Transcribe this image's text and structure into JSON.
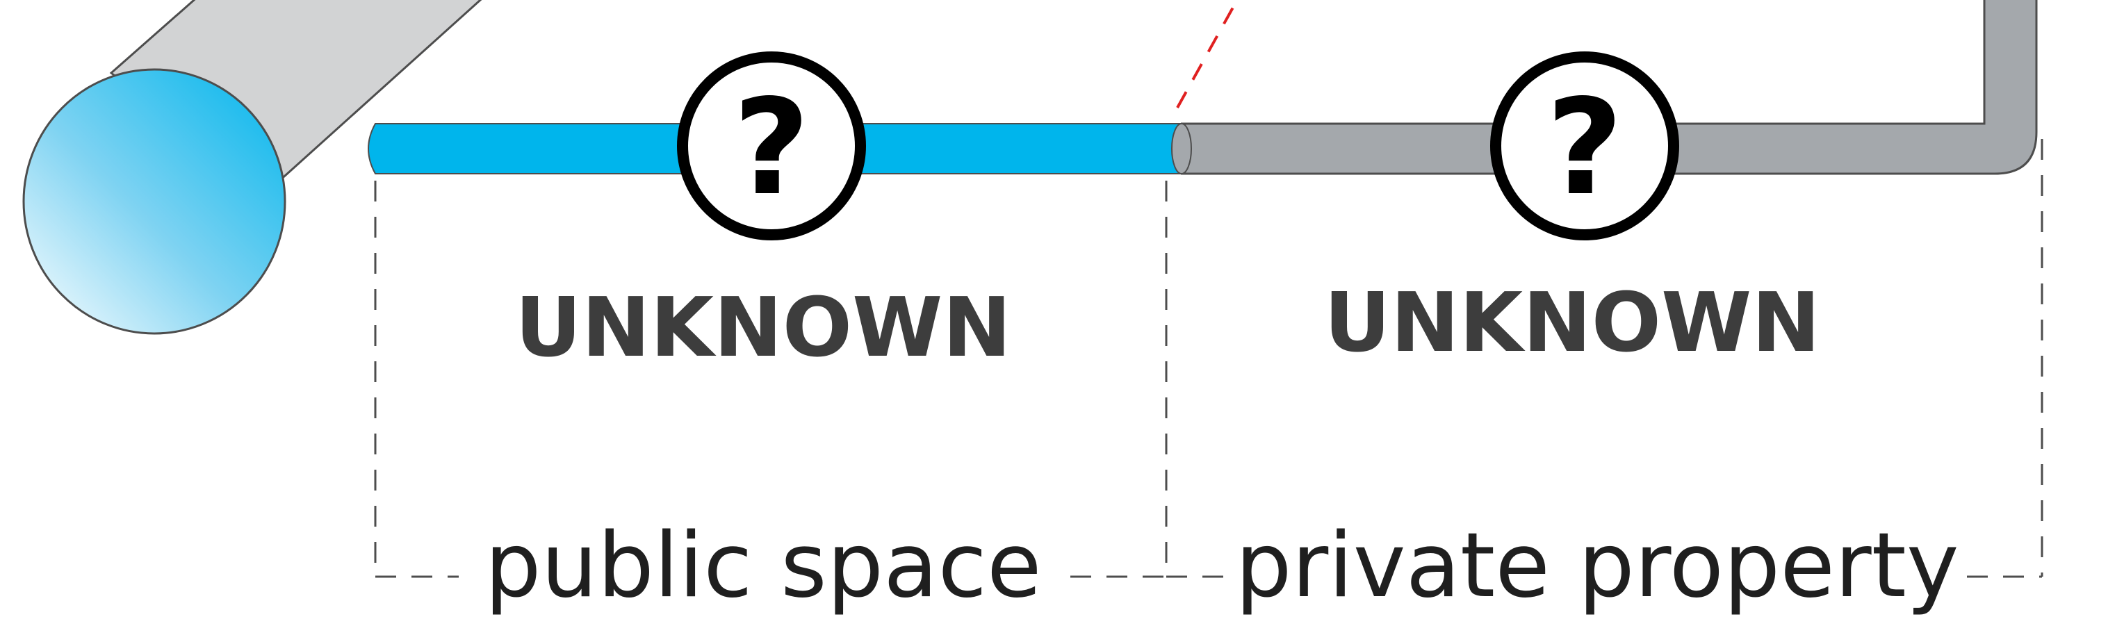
{
  "segments": {
    "public": {
      "status": "UNKNOWN",
      "zone_label": "public space",
      "symbol": "?"
    },
    "private": {
      "status": "UNKNOWN",
      "zone_label": "private property",
      "symbol": "?"
    }
  },
  "icons": {
    "status_marker": "question-mark-circle-icon"
  },
  "colors": {
    "public_pipe": "#00b5ec",
    "private_pipe": "#a4a8ac",
    "water_main": "#d2d3d4",
    "boundary_marker": "#e02020",
    "outline": "#4d4d4d",
    "text": "#3d3d3d"
  }
}
